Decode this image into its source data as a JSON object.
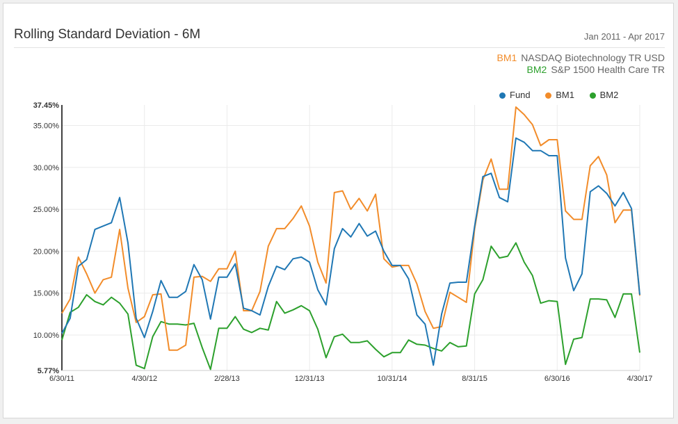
{
  "header": {
    "title": "Rolling Standard Deviation - 6M",
    "period": "Jan 2011 - Apr 2017"
  },
  "benchmarks": [
    {
      "code": "BM1",
      "name": "NASDAQ Biotechnology TR USD"
    },
    {
      "code": "BM2",
      "name": "S&P 1500 Health Care TR"
    }
  ],
  "colors": {
    "Fund": "#1f77b4",
    "BM1": "#f28c2a",
    "BM2": "#2ca02c",
    "grid": "#ebebeb",
    "axis": "#000000"
  },
  "chart_data": {
    "type": "line",
    "ylim": [
      5.77,
      37.45
    ],
    "y_ticks": [
      {
        "value": 5.77,
        "label": "5.77%",
        "bold": true
      },
      {
        "value": 10,
        "label": "10.00%",
        "bold": false
      },
      {
        "value": 15,
        "label": "15.00%",
        "bold": false
      },
      {
        "value": 20,
        "label": "20.00%",
        "bold": false
      },
      {
        "value": 25,
        "label": "25.00%",
        "bold": false
      },
      {
        "value": 30,
        "label": "30.00%",
        "bold": false
      },
      {
        "value": 35,
        "label": "35.00%",
        "bold": false
      },
      {
        "value": 37.45,
        "label": "37.45%",
        "bold": true
      }
    ],
    "x_ticks": [
      {
        "index": 0,
        "label": "6/30/11"
      },
      {
        "index": 10,
        "label": "4/30/12"
      },
      {
        "index": 20,
        "label": "2/28/13"
      },
      {
        "index": 30,
        "label": "12/31/13"
      },
      {
        "index": 40,
        "label": "10/31/14"
      },
      {
        "index": 50,
        "label": "8/31/15"
      },
      {
        "index": 60,
        "label": "6/30/16"
      },
      {
        "index": 70,
        "label": "4/30/17"
      }
    ],
    "legend_placement": "top-right",
    "grid": true,
    "series": [
      {
        "name": "Fund",
        "values": [
          10.2,
          12.0,
          18.2,
          19.0,
          22.6,
          23.0,
          23.4,
          26.4,
          21.0,
          12.0,
          9.7,
          12.8,
          16.5,
          14.5,
          14.5,
          15.2,
          18.4,
          16.6,
          11.9,
          16.9,
          16.9,
          18.5,
          13.2,
          12.9,
          12.4,
          15.8,
          18.2,
          17.8,
          19.1,
          19.3,
          18.7,
          15.4,
          13.6,
          20.3,
          22.7,
          21.7,
          23.3,
          21.8,
          22.4,
          20.0,
          18.3,
          18.3,
          16.7,
          12.4,
          11.3,
          6.4,
          12.5,
          16.2,
          16.3,
          16.3,
          23.0,
          28.9,
          29.3,
          26.4,
          25.9,
          33.5,
          33.0,
          32.0,
          32.0,
          31.4,
          31.4,
          19.2,
          15.3,
          17.3,
          27.1,
          27.8,
          26.9,
          25.4,
          27.0,
          25.1,
          14.8
        ]
      },
      {
        "name": "BM1",
        "values": [
          12.6,
          14.3,
          19.3,
          17.3,
          15.0,
          16.6,
          16.9,
          22.6,
          15.6,
          11.5,
          12.2,
          14.8,
          14.9,
          8.2,
          8.2,
          8.8,
          16.9,
          17.0,
          16.4,
          17.9,
          17.9,
          20.0,
          12.9,
          12.9,
          15.2,
          20.6,
          22.7,
          22.7,
          23.9,
          25.4,
          23.0,
          18.7,
          16.2,
          27.0,
          27.2,
          25.0,
          26.3,
          24.8,
          26.8,
          19.1,
          18.1,
          18.3,
          18.3,
          16.1,
          12.8,
          10.8,
          11.0,
          15.1,
          14.5,
          13.9,
          22.7,
          28.5,
          31.0,
          27.4,
          27.4,
          37.2,
          36.3,
          35.1,
          32.6,
          33.3,
          33.3,
          24.8,
          23.8,
          23.8,
          30.2,
          31.3,
          29.1,
          23.4,
          24.9,
          24.9,
          14.7
        ]
      },
      {
        "name": "BM2",
        "values": [
          9.4,
          12.7,
          13.3,
          14.8,
          14.0,
          13.6,
          14.5,
          13.8,
          12.5,
          6.4,
          6.0,
          9.8,
          11.6,
          11.3,
          11.3,
          11.2,
          11.4,
          8.5,
          5.9,
          10.8,
          10.8,
          12.2,
          10.7,
          10.3,
          10.8,
          10.6,
          14.0,
          12.6,
          13.0,
          13.5,
          12.9,
          10.7,
          7.3,
          9.8,
          10.1,
          9.1,
          9.1,
          9.3,
          8.3,
          7.4,
          7.9,
          7.9,
          9.4,
          8.9,
          8.8,
          8.4,
          8.1,
          9.1,
          8.6,
          8.7,
          14.9,
          16.6,
          20.6,
          19.2,
          19.4,
          21.0,
          18.7,
          17.1,
          13.8,
          14.1,
          14.0,
          6.5,
          9.5,
          9.7,
          14.3,
          14.3,
          14.2,
          12.1,
          14.9,
          14.9,
          7.9
        ]
      }
    ]
  }
}
